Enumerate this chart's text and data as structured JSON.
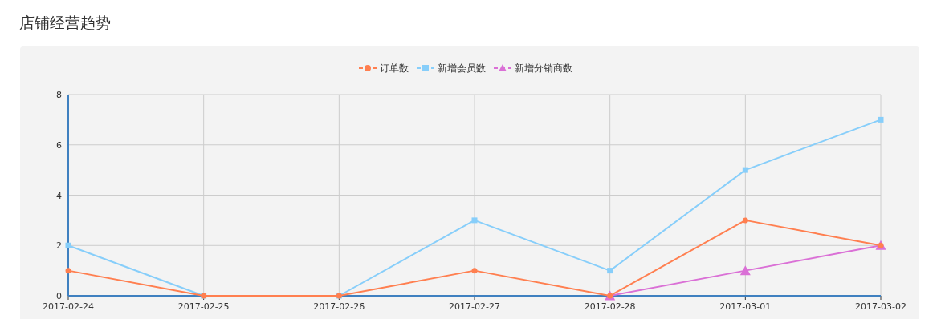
{
  "chart_data": {
    "type": "line",
    "title": "店铺经营趋势",
    "categories": [
      "2017-02-24",
      "2017-02-25",
      "2017-02-26",
      "2017-02-27",
      "2017-02-28",
      "2017-03-01",
      "2017-03-02"
    ],
    "series": [
      {
        "name": "订单数",
        "color": "#ff7f50",
        "marker": "circle",
        "values": [
          1,
          0,
          0,
          1,
          0,
          3,
          2
        ]
      },
      {
        "name": "新增会员数",
        "color": "#87cefa",
        "marker": "square",
        "values": [
          2,
          0,
          0,
          3,
          1,
          5,
          7
        ]
      },
      {
        "name": "新增分销商数",
        "color": "#da70d6",
        "marker": "triangle",
        "values": [
          null,
          null,
          null,
          null,
          0,
          1,
          2
        ]
      }
    ],
    "ylim": [
      0,
      8
    ],
    "yticks": [
      0,
      2,
      4,
      6,
      8
    ],
    "grid": true,
    "legend": "top",
    "line_style": "solid"
  }
}
